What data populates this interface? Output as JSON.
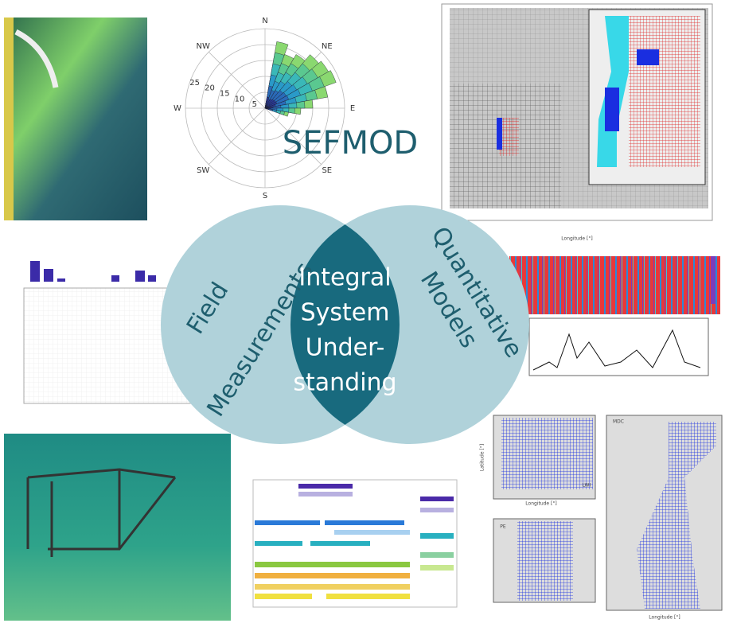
{
  "header": {
    "title": "SEFMOD"
  },
  "venn": {
    "left": {
      "lines": [
        "Field",
        "Measurements"
      ]
    },
    "center": {
      "lines": [
        "Integral",
        "System",
        "Under-",
        "standing"
      ]
    },
    "right": {
      "lines": [
        "Quantitative",
        "Models"
      ]
    }
  },
  "rose": {
    "directions": [
      "N",
      "NE",
      "E",
      "SE",
      "S",
      "SW",
      "W",
      "NW"
    ],
    "rings": [
      5,
      10,
      15,
      20,
      25
    ]
  },
  "maps": {
    "x_label": "Longitude [°]",
    "y_label": "Latitude [°]",
    "panels": [
      "LWI",
      "MDC",
      "PE"
    ]
  }
}
